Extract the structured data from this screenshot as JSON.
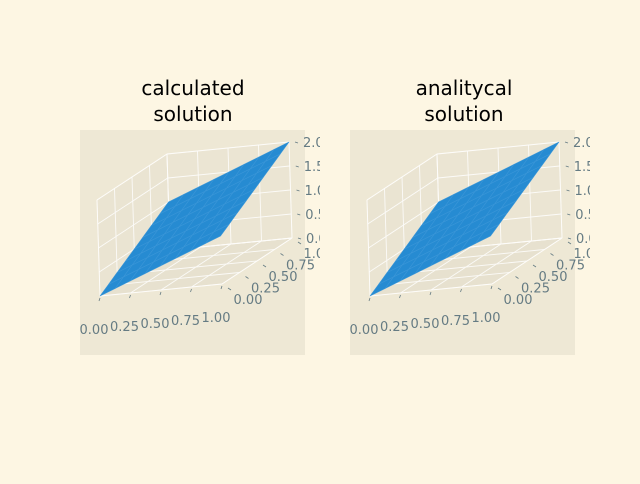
{
  "chart_data": [
    {
      "type": "surface3d",
      "title": "calculated\nsolution",
      "x": [
        0,
        0.125,
        0.25,
        0.375,
        0.5,
        0.625,
        0.75,
        0.875,
        1
      ],
      "y": [
        0,
        0.125,
        0.25,
        0.375,
        0.5,
        0.625,
        0.75,
        0.875,
        1
      ],
      "surface": "z = x + y",
      "z_range": [
        0,
        2
      ],
      "xticks": [
        "0.00",
        "0.25",
        "0.50",
        "0.75",
        "1.00"
      ],
      "yticks": [
        "0.00",
        "0.25",
        "0.50",
        "0.75",
        "1.00"
      ],
      "zticks": [
        "0.0",
        "0.5",
        "1.0",
        "1.5",
        "2.0"
      ],
      "xlabel": "",
      "ylabel": "",
      "zlabel": "",
      "surface_color": "#268bd2",
      "pane_color": "#eee8d5",
      "grid": true
    },
    {
      "type": "surface3d",
      "title": "analitycal\nsolution",
      "x": [
        0,
        0.125,
        0.25,
        0.375,
        0.5,
        0.625,
        0.75,
        0.875,
        1
      ],
      "y": [
        0,
        0.125,
        0.25,
        0.375,
        0.5,
        0.625,
        0.75,
        0.875,
        1
      ],
      "surface": "z = x + y",
      "z_range": [
        0,
        2
      ],
      "xticks": [
        "0.00",
        "0.25",
        "0.50",
        "0.75",
        "1.00"
      ],
      "yticks": [
        "0.00",
        "0.25",
        "0.50",
        "0.75",
        "1.00"
      ],
      "zticks": [
        "0.0",
        "0.5",
        "1.0",
        "1.5",
        "2.0"
      ],
      "xlabel": "",
      "ylabel": "",
      "zlabel": "",
      "surface_color": "#268bd2",
      "pane_color": "#eee8d5",
      "grid": true
    }
  ],
  "colors": {
    "figure_background": "#fdf6e3",
    "tick_label": "#657b83"
  }
}
